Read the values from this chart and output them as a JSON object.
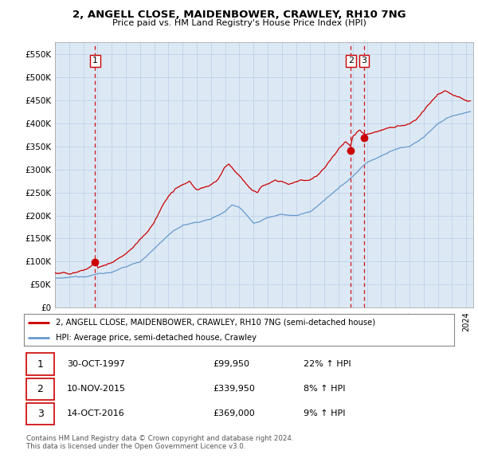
{
  "title": "2, ANGELL CLOSE, MAIDENBOWER, CRAWLEY, RH10 7NG",
  "subtitle": "Price paid vs. HM Land Registry's House Price Index (HPI)",
  "ylabel_ticks": [
    "£0",
    "£50K",
    "£100K",
    "£150K",
    "£200K",
    "£250K",
    "£300K",
    "£350K",
    "£400K",
    "£450K",
    "£500K",
    "£550K"
  ],
  "ytick_values": [
    0,
    50000,
    100000,
    150000,
    200000,
    250000,
    300000,
    350000,
    400000,
    450000,
    500000,
    550000
  ],
  "ylim": [
    0,
    575000
  ],
  "xlim_start": 1995.0,
  "xlim_end": 2024.5,
  "sale_dates": [
    1997.83,
    2015.86,
    2016.79
  ],
  "sale_prices": [
    99950,
    339950,
    369000
  ],
  "sale_labels": [
    "1",
    "2",
    "3"
  ],
  "red_line_color": "#cc0000",
  "blue_line_color": "#6699cc",
  "plot_bg_color": "#dce9f5",
  "grid_color": "#c0d0e8",
  "dashed_line_color": "#cc0000",
  "legend_label_red": "2, ANGELL CLOSE, MAIDENBOWER, CRAWLEY, RH10 7NG (semi-detached house)",
  "legend_label_blue": "HPI: Average price, semi-detached house, Crawley",
  "table_rows": [
    {
      "label": "1",
      "date": "30-OCT-1997",
      "price": "£99,950",
      "change": "22% ↑ HPI"
    },
    {
      "label": "2",
      "date": "10-NOV-2015",
      "price": "£339,950",
      "change": "8% ↑ HPI"
    },
    {
      "label": "3",
      "date": "14-OCT-2016",
      "price": "£369,000",
      "change": "9% ↑ HPI"
    }
  ],
  "footer": "Contains HM Land Registry data © Crown copyright and database right 2024.\nThis data is licensed under the Open Government Licence v3.0.",
  "background_color": "#ffffff"
}
